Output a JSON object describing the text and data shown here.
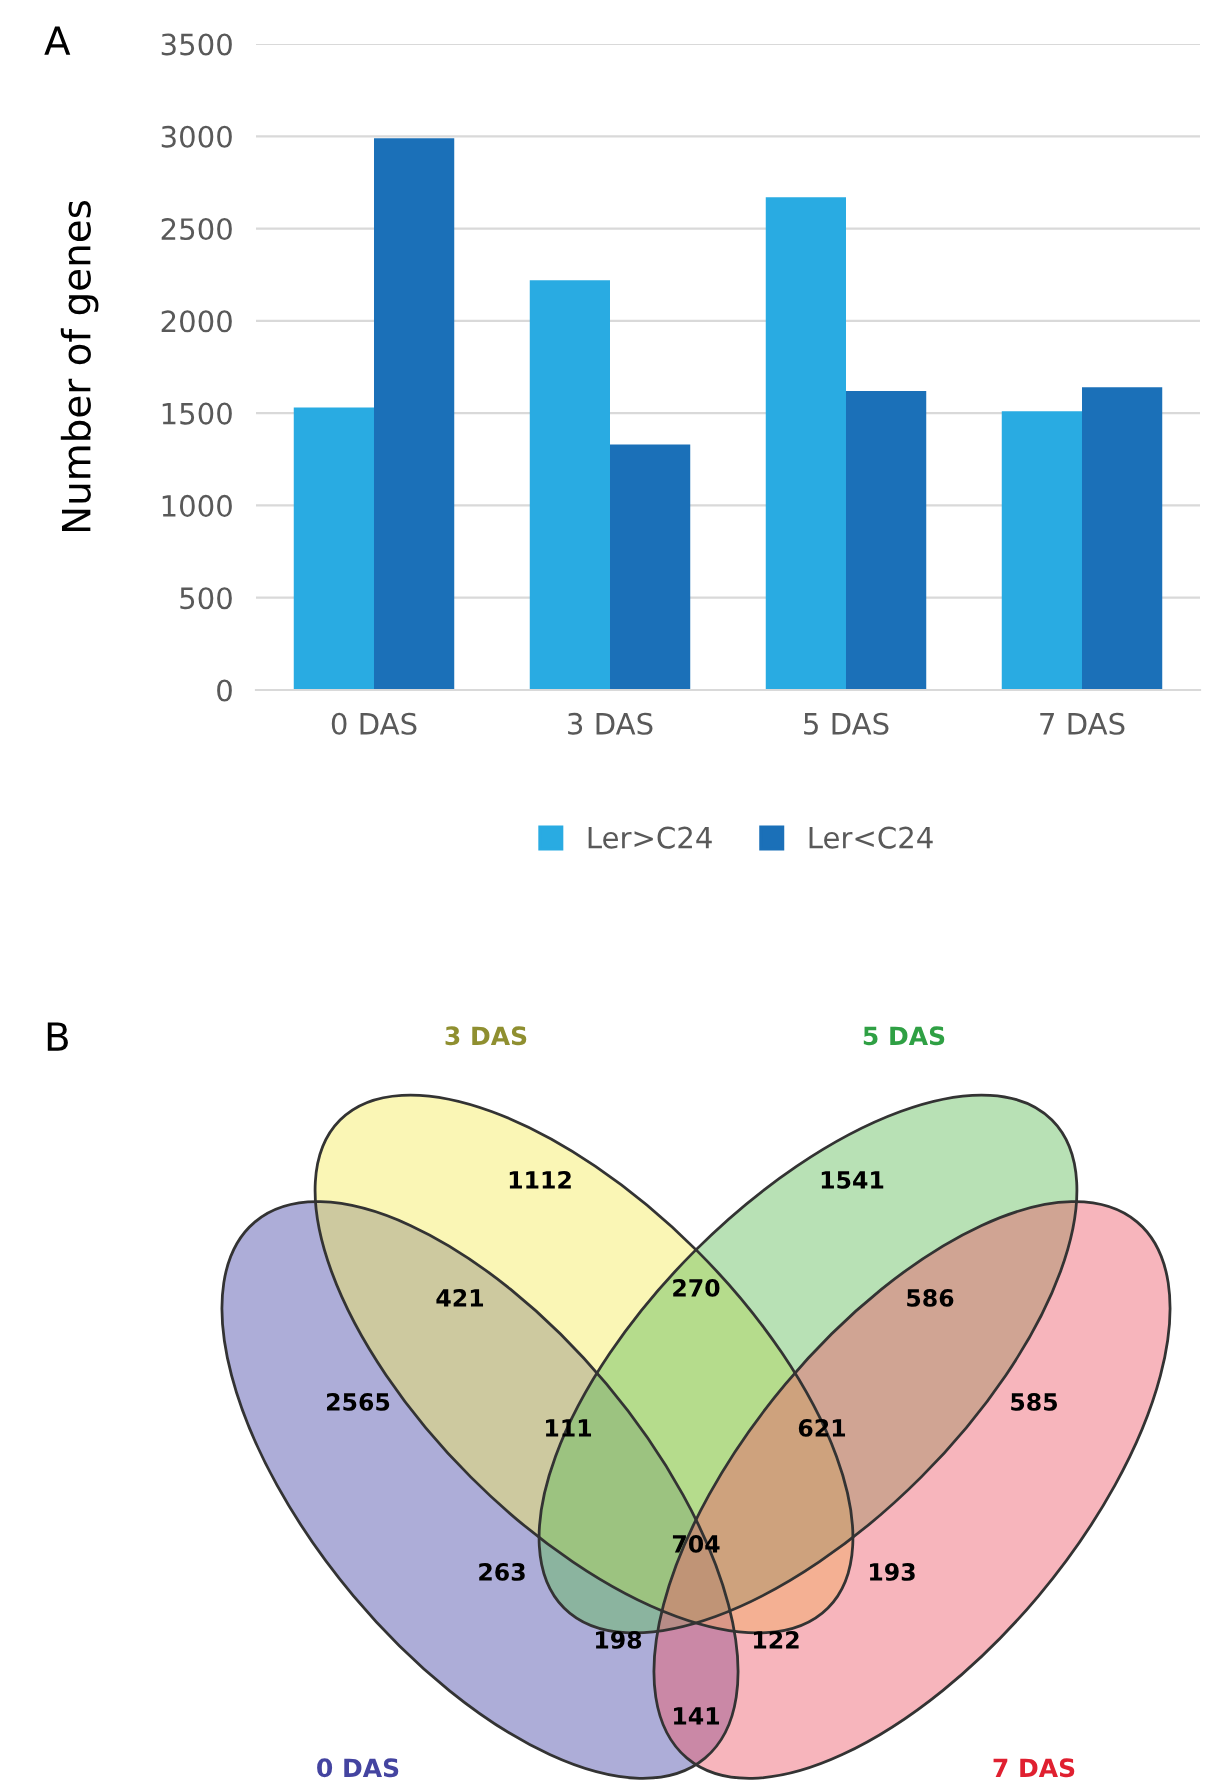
{
  "chart_data": [
    {
      "type": "bar",
      "title": "A",
      "ylabel": "Number of genes",
      "categories": [
        "0 DAS",
        "3 DAS",
        "5 DAS",
        "7 DAS"
      ],
      "series": [
        {
          "name": "Ler>C24",
          "color": "#29abe2",
          "values": [
            1530,
            2220,
            2670,
            1510
          ]
        },
        {
          "name": "Ler<C24",
          "color": "#1b70b8",
          "values": [
            2990,
            1330,
            1620,
            1640
          ]
        }
      ],
      "ylim": [
        0,
        3500
      ],
      "yticks": [
        0,
        500,
        1000,
        1500,
        2000,
        2500,
        3000,
        3500
      ],
      "grid": "y",
      "legend": "bottom"
    },
    {
      "type": "other",
      "title": "B",
      "annotations": [
        "0 DAS",
        "3 DAS",
        "5 DAS",
        "7 DAS",
        "2565",
        "1112",
        "1541",
        "585",
        "421",
        "270",
        "586",
        "111",
        "621",
        "263",
        "704",
        "193",
        "198",
        "122",
        "141"
      ]
    }
  ]
}
